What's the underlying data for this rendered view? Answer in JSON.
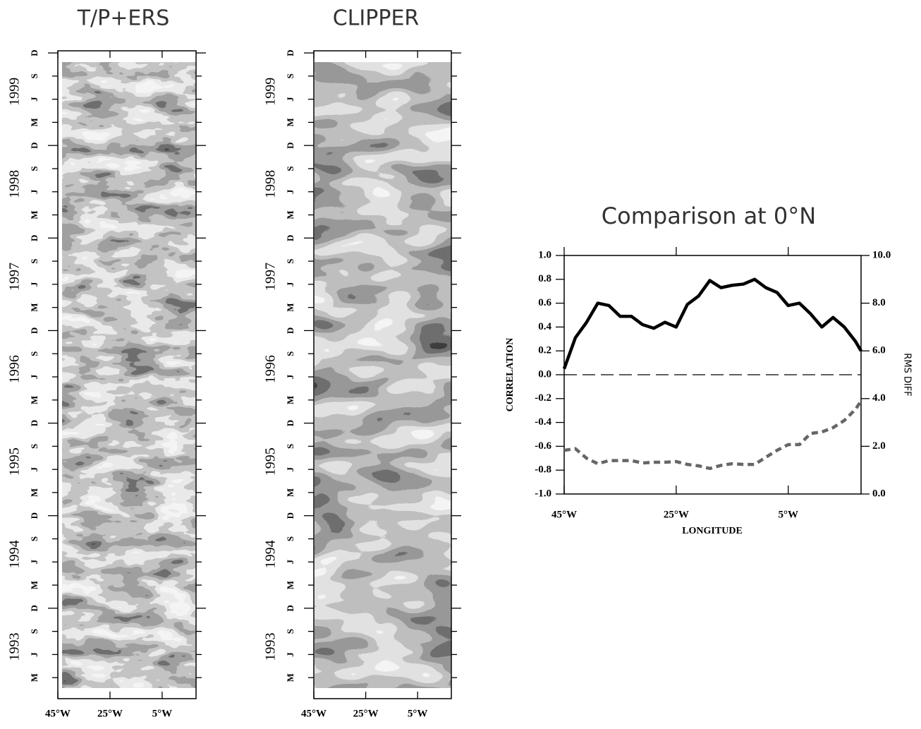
{
  "chart_data": [
    {
      "type": "hovmoller",
      "title": "T/P+ERS",
      "xlim": [
        -45,
        8
      ],
      "xticks": [
        {
          "value": -45,
          "label": "45°W"
        },
        {
          "value": -25,
          "label": "25°W"
        },
        {
          "value": -5,
          "label": "5°W"
        }
      ],
      "ylim": [
        1992.94,
        1999.94
      ],
      "yticks": [
        {
          "value": 1999.917,
          "label": "D"
        },
        {
          "value": 1999.667,
          "label": "S"
        },
        {
          "value": 1999.417,
          "label": "J"
        },
        {
          "value": 1999.167,
          "label": "M"
        },
        {
          "value": 1998.917,
          "label": "D"
        },
        {
          "value": 1998.667,
          "label": "S"
        },
        {
          "value": 1998.417,
          "label": "J"
        },
        {
          "value": 1998.167,
          "label": "M"
        },
        {
          "value": 1997.917,
          "label": "D"
        },
        {
          "value": 1997.667,
          "label": "S"
        },
        {
          "value": 1997.417,
          "label": "J"
        },
        {
          "value": 1997.167,
          "label": "M"
        },
        {
          "value": 1996.917,
          "label": "D"
        },
        {
          "value": 1996.667,
          "label": "S"
        },
        {
          "value": 1996.417,
          "label": "J"
        },
        {
          "value": 1996.167,
          "label": "M"
        },
        {
          "value": 1995.917,
          "label": "D"
        },
        {
          "value": 1995.667,
          "label": "S"
        },
        {
          "value": 1995.417,
          "label": "J"
        },
        {
          "value": 1995.167,
          "label": "M"
        },
        {
          "value": 1994.917,
          "label": "D"
        },
        {
          "value": 1994.667,
          "label": "S"
        },
        {
          "value": 1994.417,
          "label": "J"
        },
        {
          "value": 1994.167,
          "label": "M"
        },
        {
          "value": 1993.917,
          "label": "D"
        },
        {
          "value": 1993.667,
          "label": "S"
        },
        {
          "value": 1993.417,
          "label": "J"
        },
        {
          "value": 1993.167,
          "label": "M"
        }
      ],
      "year_ticks": [
        {
          "value": 1999.5,
          "label": "1999"
        },
        {
          "value": 1998.5,
          "label": "1998"
        },
        {
          "value": 1997.5,
          "label": "1997"
        },
        {
          "value": 1996.5,
          "label": "1996"
        },
        {
          "value": 1995.5,
          "label": "1995"
        },
        {
          "value": 1994.5,
          "label": "1994"
        },
        {
          "value": 1993.5,
          "label": "1993"
        }
      ]
    },
    {
      "type": "hovmoller",
      "title": "CLIPPER",
      "xlim": [
        -45,
        8
      ],
      "xticks": [
        {
          "value": -45,
          "label": "45°W"
        },
        {
          "value": -25,
          "label": "25°W"
        },
        {
          "value": -5,
          "label": "5°W"
        }
      ],
      "ylim": [
        1992.94,
        1999.94
      ],
      "yticks": [
        {
          "value": 1999.917,
          "label": "D"
        },
        {
          "value": 1999.667,
          "label": "S"
        },
        {
          "value": 1999.417,
          "label": "J"
        },
        {
          "value": 1999.167,
          "label": "M"
        },
        {
          "value": 1998.917,
          "label": "D"
        },
        {
          "value": 1998.667,
          "label": "S"
        },
        {
          "value": 1998.417,
          "label": "J"
        },
        {
          "value": 1998.167,
          "label": "M"
        },
        {
          "value": 1997.917,
          "label": "D"
        },
        {
          "value": 1997.667,
          "label": "S"
        },
        {
          "value": 1997.417,
          "label": "J"
        },
        {
          "value": 1997.167,
          "label": "M"
        },
        {
          "value": 1996.917,
          "label": "D"
        },
        {
          "value": 1996.667,
          "label": "S"
        },
        {
          "value": 1996.417,
          "label": "J"
        },
        {
          "value": 1996.167,
          "label": "M"
        },
        {
          "value": 1995.917,
          "label": "D"
        },
        {
          "value": 1995.667,
          "label": "S"
        },
        {
          "value": 1995.417,
          "label": "J"
        },
        {
          "value": 1995.167,
          "label": "M"
        },
        {
          "value": 1994.917,
          "label": "D"
        },
        {
          "value": 1994.667,
          "label": "S"
        },
        {
          "value": 1994.417,
          "label": "J"
        },
        {
          "value": 1994.167,
          "label": "M"
        },
        {
          "value": 1993.917,
          "label": "D"
        },
        {
          "value": 1993.667,
          "label": "S"
        },
        {
          "value": 1993.417,
          "label": "J"
        },
        {
          "value": 1993.167,
          "label": "M"
        }
      ],
      "year_ticks": [
        {
          "value": 1999.5,
          "label": "1999"
        },
        {
          "value": 1998.5,
          "label": "1998"
        },
        {
          "value": 1997.5,
          "label": "1997"
        },
        {
          "value": 1996.5,
          "label": "1996"
        },
        {
          "value": 1995.5,
          "label": "1995"
        },
        {
          "value": 1994.5,
          "label": "1994"
        },
        {
          "value": 1993.5,
          "label": "1993"
        }
      ]
    },
    {
      "type": "line",
      "title": "Comparison at 0°N",
      "xlabel": "LONGITUDE",
      "ylabel": "CORRELATION",
      "y2label": "RMS DIFF",
      "x": [
        -45,
        -43,
        -41,
        -39,
        -37,
        -35,
        -33,
        -31,
        -29,
        -27,
        -25,
        -23,
        -21,
        -19,
        -17,
        -15,
        -13,
        -11,
        -9,
        -7,
        -5,
        -3,
        -1,
        1,
        3,
        5,
        7,
        8
      ],
      "xlim": [
        -45,
        8
      ],
      "xticks": [
        {
          "value": -45,
          "label": "45°W"
        },
        {
          "value": -25,
          "label": "25°W"
        },
        {
          "value": -5,
          "label": "5°W"
        }
      ],
      "ylim": [
        -1,
        1
      ],
      "yticks": [
        {
          "value": 1,
          "label": "1.0"
        },
        0.8,
        0.6,
        0.4,
        0.2,
        {
          "value": 0,
          "label": "0.0"
        },
        -0.2,
        -0.4,
        -0.6,
        -0.8,
        {
          "value": -1,
          "label": "-1.0"
        }
      ],
      "y2lim": [
        0,
        10
      ],
      "y2ticks": [
        {
          "value": 10,
          "label": "10.0"
        },
        {
          "value": 8,
          "label": "8.0"
        },
        {
          "value": 6,
          "label": "6.0"
        },
        {
          "value": 4,
          "label": "4.0"
        },
        {
          "value": 2,
          "label": "2.0"
        },
        {
          "value": 0,
          "label": "0.0"
        }
      ],
      "hline": 0,
      "series": [
        {
          "color": "#000000",
          "dash": "solid",
          "values": [
            0.05,
            0.31,
            0.44,
            0.6,
            0.58,
            0.49,
            0.49,
            0.42,
            0.39,
            0.44,
            0.4,
            0.59,
            0.66,
            0.79,
            0.73,
            0.75,
            0.76,
            0.8,
            0.73,
            0.69,
            0.58,
            0.6,
            0.51,
            0.4,
            0.48,
            0.4,
            0.28,
            0.2
          ]
        },
        {
          "color": "#666666",
          "dash": "dashed",
          "axis": "y2",
          "values": [
            1.83,
            1.9,
            1.5,
            1.27,
            1.4,
            1.4,
            1.4,
            1.3,
            1.33,
            1.33,
            1.36,
            1.24,
            1.18,
            1.07,
            1.2,
            1.27,
            1.24,
            1.24,
            1.54,
            1.83,
            2.07,
            2.07,
            2.54,
            2.6,
            2.78,
            3.08,
            3.55,
            3.9
          ]
        }
      ]
    }
  ]
}
